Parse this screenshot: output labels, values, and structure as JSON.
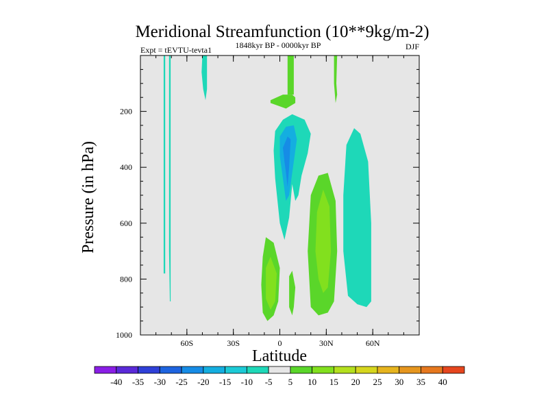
{
  "chart_data": {
    "type": "heatmap",
    "title": "Meridional Streamfunction (10**9kg/m-2)",
    "left_string": "Expt = tEVTU-tevta1",
    "center_string": "1848kyr BP - 0000kyr BP",
    "right_string": "DJF",
    "xlabel": "Latitude",
    "ylabel": "Pressure (in hPa)",
    "xlim": [
      -90,
      90
    ],
    "ylim": [
      1000,
      0
    ],
    "x_ticks": [
      {
        "value": -60,
        "label": "60S"
      },
      {
        "value": -30,
        "label": "30S"
      },
      {
        "value": 0,
        "label": "0"
      },
      {
        "value": 30,
        "label": "30N"
      },
      {
        "value": 60,
        "label": "60N"
      }
    ],
    "y_ticks": [
      {
        "value": 200,
        "label": "200"
      },
      {
        "value": 400,
        "label": "400"
      },
      {
        "value": 600,
        "label": "600"
      },
      {
        "value": 800,
        "label": "800"
      },
      {
        "value": 1000,
        "label": "1000"
      }
    ],
    "background_color": "#e6e6e6",
    "colorbar": {
      "levels": [
        -40,
        -35,
        -30,
        -25,
        -20,
        -15,
        -10,
        -5,
        5,
        10,
        15,
        20,
        25,
        30,
        35,
        40
      ],
      "labels": [
        "-40",
        "-35",
        "-30",
        "-25",
        "-20",
        "-15",
        "-10",
        "-5",
        "5",
        "10",
        "15",
        "20",
        "25",
        "30",
        "35",
        "40"
      ],
      "colors": [
        "#8a1ee6",
        "#5a2ad8",
        "#2f40d8",
        "#1e64e0",
        "#168ce6",
        "#14aee0",
        "#1ccad6",
        "#1ed8b8",
        "#e6e6e6",
        "#5ad62a",
        "#82e01e",
        "#b4e01e",
        "#d6d61e",
        "#e6b41e",
        "#e6961e",
        "#e6781e",
        "#e6461e"
      ]
    },
    "contours": [
      {
        "name": "sh-polar-streak-1",
        "value": -10,
        "color": "#1ed8b8",
        "points": [
          [
            -75,
            0
          ],
          [
            -74,
            0
          ],
          [
            -74,
            600
          ],
          [
            -74,
            780
          ],
          [
            -75,
            780
          ],
          [
            -75,
            600
          ]
        ]
      },
      {
        "name": "sh-polar-streak-2",
        "value": -10,
        "color": "#1ed8b8",
        "points": [
          [
            -71.5,
            0
          ],
          [
            -70.5,
            0
          ],
          [
            -70.5,
            700
          ],
          [
            -70.5,
            880
          ],
          [
            -71,
            880
          ],
          [
            -71.5,
            700
          ]
        ]
      },
      {
        "name": "sh-upper-tongue",
        "value": -10,
        "color": "#1ed8b8",
        "points": [
          [
            -50,
            0
          ],
          [
            -47,
            0
          ],
          [
            -47,
            120
          ],
          [
            -48,
            160
          ],
          [
            -49.5,
            120
          ],
          [
            -50.5,
            60
          ]
        ]
      },
      {
        "name": "equatorial-negative-cell",
        "value": -10,
        "color": "#1ed8b8",
        "points": [
          [
            -3,
            270
          ],
          [
            2,
            230
          ],
          [
            8,
            210
          ],
          [
            16,
            230
          ],
          [
            20,
            280
          ],
          [
            18,
            350
          ],
          [
            14,
            430
          ],
          [
            12,
            500
          ],
          [
            10,
            520
          ],
          [
            8,
            460
          ],
          [
            6,
            580
          ],
          [
            3,
            660
          ],
          [
            0,
            600
          ],
          [
            -3,
            440
          ],
          [
            -4,
            340
          ]
        ]
      },
      {
        "name": "equatorial-core-15",
        "value": -15,
        "color": "#14aee0",
        "points": [
          [
            0,
            290
          ],
          [
            4,
            255
          ],
          [
            9,
            250
          ],
          [
            11,
            300
          ],
          [
            8,
            420
          ],
          [
            6,
            500
          ],
          [
            4,
            520
          ],
          [
            2,
            440
          ],
          [
            0,
            360
          ]
        ]
      },
      {
        "name": "equatorial-core-20",
        "value": -20,
        "color": "#168ce6",
        "points": [
          [
            2,
            330
          ],
          [
            5,
            290
          ],
          [
            7,
            300
          ],
          [
            6,
            400
          ],
          [
            5,
            470
          ],
          [
            4,
            420
          ],
          [
            3,
            380
          ]
        ]
      },
      {
        "name": "nh-subtropical-negative-cell",
        "value": -10,
        "color": "#1ed8b8",
        "points": [
          [
            43,
            320
          ],
          [
            48,
            260
          ],
          [
            52,
            280
          ],
          [
            57,
            380
          ],
          [
            59,
            600
          ],
          [
            59,
            880
          ],
          [
            56,
            900
          ],
          [
            50,
            890
          ],
          [
            44,
            860
          ],
          [
            41,
            700
          ],
          [
            41,
            500
          ]
        ]
      },
      {
        "name": "upper-equatorial-positive",
        "value": 5,
        "color": "#5ad62a",
        "points": [
          [
            -6,
            160
          ],
          [
            2,
            140
          ],
          [
            8,
            140
          ],
          [
            10,
            150
          ],
          [
            10,
            170
          ],
          [
            4,
            190
          ],
          [
            -6,
            170
          ]
        ]
      },
      {
        "name": "equatorial-upper-column",
        "value": 5,
        "color": "#5ad62a",
        "points": [
          [
            5,
            0
          ],
          [
            9,
            0
          ],
          [
            9,
            140
          ],
          [
            5,
            140
          ]
        ]
      },
      {
        "name": "nh-upper-thin-streak",
        "value": 5,
        "color": "#5ad62a",
        "points": [
          [
            35,
            0
          ],
          [
            37,
            0
          ],
          [
            36.5,
            100
          ],
          [
            37,
            140
          ],
          [
            36,
            170
          ],
          [
            35,
            100
          ]
        ]
      },
      {
        "name": "sh-tropical-positive-cell",
        "value": 5,
        "color": "#5ad62a",
        "points": [
          [
            -11,
            720
          ],
          [
            -9,
            650
          ],
          [
            -4,
            670
          ],
          [
            0,
            760
          ],
          [
            -1,
            880
          ],
          [
            -4,
            930
          ],
          [
            -8,
            950
          ],
          [
            -11,
            920
          ],
          [
            -12,
            820
          ]
        ]
      },
      {
        "name": "sh-tropical-positive-core",
        "value": 10,
        "color": "#82e01e",
        "points": [
          [
            -9,
            760
          ],
          [
            -6,
            720
          ],
          [
            -2,
            780
          ],
          [
            -3,
            880
          ],
          [
            -6,
            910
          ],
          [
            -9,
            870
          ]
        ]
      },
      {
        "name": "equatorial-lower-streak",
        "value": 5,
        "color": "#5ad62a",
        "points": [
          [
            6,
            790
          ],
          [
            8,
            770
          ],
          [
            10,
            830
          ],
          [
            9,
            900
          ],
          [
            8,
            930
          ],
          [
            6,
            900
          ]
        ]
      },
      {
        "name": "nh-tropical-positive-cell",
        "value": 5,
        "color": "#5ad62a",
        "points": [
          [
            20,
            500
          ],
          [
            25,
            430
          ],
          [
            31,
            420
          ],
          [
            36,
            520
          ],
          [
            37,
            700
          ],
          [
            35,
            880
          ],
          [
            31,
            920
          ],
          [
            25,
            930
          ],
          [
            20,
            900
          ],
          [
            18,
            700
          ],
          [
            19,
            600
          ]
        ]
      },
      {
        "name": "nh-tropical-positive-core",
        "value": 10,
        "color": "#82e01e",
        "points": [
          [
            24,
            560
          ],
          [
            28,
            480
          ],
          [
            32,
            540
          ],
          [
            33,
            700
          ],
          [
            31,
            830
          ],
          [
            28,
            850
          ],
          [
            25,
            800
          ],
          [
            23,
            700
          ]
        ]
      }
    ]
  }
}
